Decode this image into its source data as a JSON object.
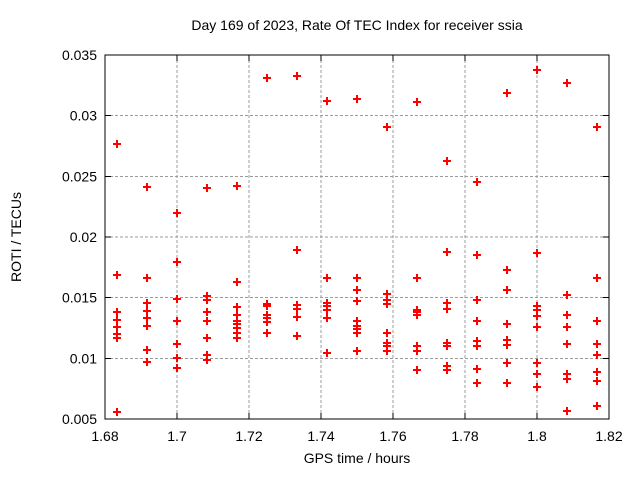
{
  "chart_data": {
    "type": "scatter",
    "title": "Day 169 of 2023, Rate Of TEC Index for receiver ssia",
    "xlabel": "GPS time / hours",
    "ylabel": "ROTI / TECUs",
    "xlim": [
      1.68,
      1.82
    ],
    "ylim": [
      0.005,
      0.035
    ],
    "xticks": [
      1.68,
      1.7,
      1.72,
      1.74,
      1.76,
      1.78,
      1.8,
      1.82
    ],
    "xtick_labels": [
      "1.68",
      "1.7",
      "1.72",
      "1.74",
      "1.76",
      "1.78",
      "1.8",
      "1.82"
    ],
    "yticks": [
      0.005,
      0.01,
      0.015,
      0.02,
      0.025,
      0.03,
      0.035
    ],
    "ytick_labels": [
      "0.005",
      "0.01",
      "0.015",
      "0.02",
      "0.025",
      "0.03",
      "0.035"
    ],
    "grid": true,
    "legend_position": "none",
    "marker": {
      "shape": "plus",
      "color": "#ff0000",
      "size": 9
    },
    "colors": {
      "background": "#ffffff",
      "axis": "#000000",
      "grid": "#9b9b9b",
      "series": "#ff0000"
    },
    "series": [
      {
        "name": "ROTI",
        "points": [
          [
            1.6833,
            0.0277
          ],
          [
            1.6833,
            0.0169
          ],
          [
            1.6833,
            0.0138
          ],
          [
            1.6833,
            0.0132
          ],
          [
            1.6833,
            0.0126
          ],
          [
            1.6833,
            0.012
          ],
          [
            1.6833,
            0.0117
          ],
          [
            1.6833,
            0.0056
          ],
          [
            1.6917,
            0.0241
          ],
          [
            1.6917,
            0.0166
          ],
          [
            1.6917,
            0.0146
          ],
          [
            1.6917,
            0.0139
          ],
          [
            1.6917,
            0.0133
          ],
          [
            1.6917,
            0.0127
          ],
          [
            1.6917,
            0.0107
          ],
          [
            1.6917,
            0.0097
          ],
          [
            1.7,
            0.022
          ],
          [
            1.7,
            0.0179
          ],
          [
            1.7,
            0.0149
          ],
          [
            1.7,
            0.0131
          ],
          [
            1.7,
            0.0112
          ],
          [
            1.7,
            0.01
          ],
          [
            1.7,
            0.0092
          ],
          [
            1.7083,
            0.024
          ],
          [
            1.7083,
            0.0151
          ],
          [
            1.7083,
            0.0148
          ],
          [
            1.7083,
            0.0138
          ],
          [
            1.7083,
            0.0131
          ],
          [
            1.7083,
            0.0117
          ],
          [
            1.7083,
            0.0103
          ],
          [
            1.7083,
            0.0099
          ],
          [
            1.7167,
            0.0242
          ],
          [
            1.7167,
            0.0163
          ],
          [
            1.7167,
            0.0142
          ],
          [
            1.7167,
            0.0136
          ],
          [
            1.7167,
            0.0131
          ],
          [
            1.7167,
            0.0128
          ],
          [
            1.7167,
            0.0125
          ],
          [
            1.7167,
            0.0121
          ],
          [
            1.7167,
            0.0117
          ],
          [
            1.725,
            0.0331
          ],
          [
            1.725,
            0.0145
          ],
          [
            1.725,
            0.0143
          ],
          [
            1.725,
            0.0136
          ],
          [
            1.725,
            0.0133
          ],
          [
            1.725,
            0.013
          ],
          [
            1.725,
            0.0121
          ],
          [
            1.7333,
            0.0333
          ],
          [
            1.7333,
            0.0189
          ],
          [
            1.7333,
            0.0144
          ],
          [
            1.7333,
            0.0141
          ],
          [
            1.7333,
            0.0134
          ],
          [
            1.7333,
            0.0118
          ],
          [
            1.7417,
            0.0312
          ],
          [
            1.7417,
            0.0166
          ],
          [
            1.7417,
            0.0146
          ],
          [
            1.7417,
            0.0143
          ],
          [
            1.7417,
            0.014
          ],
          [
            1.7417,
            0.0133
          ],
          [
            1.7417,
            0.0104
          ],
          [
            1.75,
            0.0314
          ],
          [
            1.75,
            0.0166
          ],
          [
            1.75,
            0.0156
          ],
          [
            1.75,
            0.0147
          ],
          [
            1.75,
            0.0131
          ],
          [
            1.75,
            0.0127
          ],
          [
            1.75,
            0.0124
          ],
          [
            1.75,
            0.0121
          ],
          [
            1.75,
            0.0106
          ],
          [
            1.7583,
            0.0291
          ],
          [
            1.7583,
            0.0153
          ],
          [
            1.7583,
            0.0148
          ],
          [
            1.7583,
            0.0145
          ],
          [
            1.7583,
            0.0121
          ],
          [
            1.7583,
            0.0113
          ],
          [
            1.7583,
            0.011
          ],
          [
            1.7583,
            0.0106
          ],
          [
            1.7667,
            0.0311
          ],
          [
            1.7667,
            0.0166
          ],
          [
            1.7667,
            0.014
          ],
          [
            1.7667,
            0.0138
          ],
          [
            1.7667,
            0.0136
          ],
          [
            1.7667,
            0.011
          ],
          [
            1.7667,
            0.0106
          ],
          [
            1.7667,
            0.009
          ],
          [
            1.775,
            0.0263
          ],
          [
            1.775,
            0.0188
          ],
          [
            1.775,
            0.0146
          ],
          [
            1.775,
            0.0141
          ],
          [
            1.775,
            0.0113
          ],
          [
            1.775,
            0.011
          ],
          [
            1.775,
            0.0094
          ],
          [
            1.775,
            0.009
          ],
          [
            1.7833,
            0.0245
          ],
          [
            1.7833,
            0.0185
          ],
          [
            1.7833,
            0.0148
          ],
          [
            1.7833,
            0.0131
          ],
          [
            1.7833,
            0.0114
          ],
          [
            1.7833,
            0.011
          ],
          [
            1.7833,
            0.0091
          ],
          [
            1.7833,
            0.008
          ],
          [
            1.7917,
            0.0319
          ],
          [
            1.7917,
            0.0173
          ],
          [
            1.7917,
            0.0156
          ],
          [
            1.7917,
            0.0128
          ],
          [
            1.7917,
            0.0115
          ],
          [
            1.7917,
            0.0111
          ],
          [
            1.7917,
            0.0096
          ],
          [
            1.7917,
            0.008
          ],
          [
            1.8,
            0.0338
          ],
          [
            1.8,
            0.0187
          ],
          [
            1.8,
            0.0143
          ],
          [
            1.8,
            0.014
          ],
          [
            1.8,
            0.0135
          ],
          [
            1.8,
            0.0126
          ],
          [
            1.8,
            0.0096
          ],
          [
            1.8,
            0.0087
          ],
          [
            1.8,
            0.0076
          ],
          [
            1.8083,
            0.0327
          ],
          [
            1.8083,
            0.0152
          ],
          [
            1.8083,
            0.0136
          ],
          [
            1.8083,
            0.0126
          ],
          [
            1.8083,
            0.0112
          ],
          [
            1.8083,
            0.0087
          ],
          [
            1.8083,
            0.0083
          ],
          [
            1.8083,
            0.0057
          ],
          [
            1.8167,
            0.0291
          ],
          [
            1.8167,
            0.0166
          ],
          [
            1.8167,
            0.0131
          ],
          [
            1.8167,
            0.0112
          ],
          [
            1.8167,
            0.0103
          ],
          [
            1.8167,
            0.0089
          ],
          [
            1.8167,
            0.0081
          ],
          [
            1.8167,
            0.0061
          ]
        ]
      }
    ]
  }
}
